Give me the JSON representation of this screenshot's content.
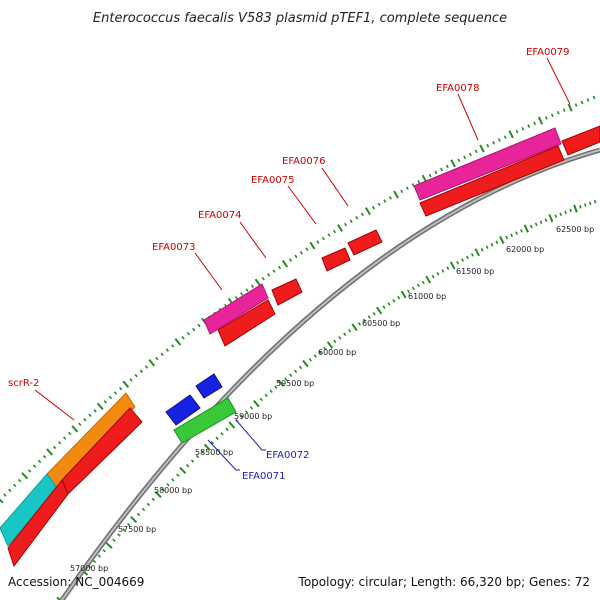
{
  "title": "Enterococcus faecalis V583 plasmid pTEF1, complete sequence",
  "footer": {
    "accession": "Accession: NC_004669",
    "summary": "Topology: circular; Length: 66,320 bp; Genes: 72"
  },
  "colors": {
    "red": "#ee1c1c",
    "magenta": "#e8249a",
    "orange": "#f28a12",
    "cyan": "#18c6c6",
    "blue": "#1622e0",
    "green": "#38c838",
    "backbone": "#8a8a8a",
    "tick": "#228b22",
    "label_red": "#cc0000",
    "label_blue": "#1c1cbb"
  },
  "scale_labels": [
    {
      "text": "57000 bp",
      "bp": 57000
    },
    {
      "text": "57500 bp",
      "bp": 57500
    },
    {
      "text": "58000 bp",
      "bp": 58000
    },
    {
      "text": "58500 bp",
      "bp": 58500
    },
    {
      "text": "59000 bp",
      "bp": 59000
    },
    {
      "text": "59500 bp",
      "bp": 59500
    },
    {
      "text": "60000 bp",
      "bp": 60000
    },
    {
      "text": "60500 bp",
      "bp": 60500
    },
    {
      "text": "61000 bp",
      "bp": 61000
    },
    {
      "text": "61500 bp",
      "bp": 61500
    },
    {
      "text": "62000 bp",
      "bp": 62000
    },
    {
      "text": "62500 bp",
      "bp": 62500
    }
  ],
  "gene_labels": [
    {
      "text": "scrR-2",
      "color": "label_red"
    },
    {
      "text": "EFA0073",
      "color": "label_red"
    },
    {
      "text": "EFA0074",
      "color": "label_red"
    },
    {
      "text": "EFA0075",
      "color": "label_red"
    },
    {
      "text": "EFA0076",
      "color": "label_red"
    },
    {
      "text": "EFA0078",
      "color": "label_red"
    },
    {
      "text": "EFA0079",
      "color": "label_red"
    },
    {
      "text": "EFA0072",
      "color": "label_blue"
    },
    {
      "text": "EFA0071",
      "color": "label_blue"
    }
  ]
}
